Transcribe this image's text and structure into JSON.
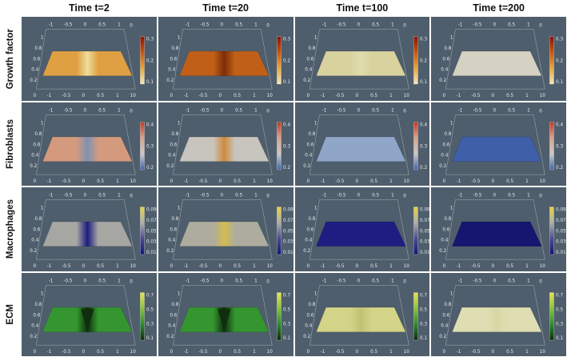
{
  "columns": [
    "Time t=2",
    "Time t=20",
    "Time t=100",
    "Time t=200"
  ],
  "panel_bg": "#4f5e6c",
  "axes": {
    "top_ticks": [
      "-1",
      "-0.5",
      "0",
      "0.5",
      "1"
    ],
    "top_right_corner": "0",
    "left_ticks": [
      "1",
      "0.8",
      "0.6",
      "0.4",
      "0.2"
    ],
    "bottom_left_corner": "0",
    "bottom_ticks": [
      "-1",
      "-0.5",
      "0",
      "0.5",
      "1"
    ],
    "bottom_right_corner": "10"
  },
  "rows": [
    {
      "label": "Growth factor",
      "colorbar": {
        "ticks": [
          "0.3",
          "0.2",
          "0.1"
        ],
        "colors": [
          "#8b1002",
          "#c85512",
          "#e8a83e",
          "#f4e8bc"
        ]
      },
      "cells": [
        {
          "main": "#dfa044",
          "center": "#eedd9a",
          "notch": false
        },
        {
          "main": "#c06018",
          "center": "#7e2d08",
          "notch": false
        },
        {
          "main": "#d8d29e",
          "center": "#e0dcae",
          "notch": false
        },
        {
          "main": "#d5d1c3",
          "center": "#d5d1c3",
          "notch": false
        }
      ]
    },
    {
      "label": "Fibroblasts",
      "colorbar": {
        "ticks": [
          "0.4",
          "0.3",
          "0.2"
        ],
        "colors": [
          "#c03a22",
          "#d8a28c",
          "#ccc8c6",
          "#4064ac"
        ]
      },
      "cells": [
        {
          "main": "#d49a7e",
          "center": "#7e92b2",
          "notch": false
        },
        {
          "main": "#c8c4be",
          "center": "#d08a3c",
          "notch": false
        },
        {
          "main": "#8fa6c9",
          "center": "#8fa6c9",
          "notch": false
        },
        {
          "main": "#3f5fa9",
          "center": "#3f5fa9",
          "notch": false
        }
      ]
    },
    {
      "label": "Macrophages",
      "colorbar": {
        "ticks": [
          "0.09",
          "0.07",
          "0.05",
          "0.03",
          "0.01"
        ],
        "colors": [
          "#e6d23f",
          "#b0b0a8",
          "#4a4a92",
          "#141478"
        ]
      },
      "cells": [
        {
          "main": "#a6a6a2",
          "center": "#1c1c80",
          "notch": false
        },
        {
          "main": "#aeac9e",
          "center": "#d2bc50",
          "notch": false
        },
        {
          "main": "#1e1e82",
          "center": "#1e1e82",
          "notch": false
        },
        {
          "main": "#161670",
          "center": "#161670",
          "notch": false
        }
      ]
    },
    {
      "label": "ECM",
      "colorbar": {
        "ticks": [
          "0.7",
          "0.5",
          "0.3",
          "0.1"
        ],
        "colors": [
          "#e8e44e",
          "#8cc23e",
          "#2e8b2e",
          "#0c2c0c"
        ]
      },
      "cells": [
        {
          "main": "#35962f",
          "center": "#0e2e0e",
          "notch": true
        },
        {
          "main": "#35962f",
          "center": "#0e2e0e",
          "notch": true
        },
        {
          "main": "#d4d488",
          "center": "#c2c275",
          "notch": false
        },
        {
          "main": "#dedeb2",
          "center": "#d8d8a6",
          "notch": false
        }
      ]
    }
  ],
  "chart_data": {
    "type": "surface",
    "layout": "4x4 grid of 3D surface plots; columns are time points, rows are model variables; each panel has axes x in [-1,1] (front/back), z in [0,1] (vertical, ticks 0.2-1) and its own colorbar",
    "times": [
      2,
      20,
      100,
      200
    ],
    "variables": [
      {
        "name": "Growth factor",
        "colorbar_range": [
          0.1,
          0.3
        ],
        "colorbar_ticks": [
          0.3,
          0.2,
          0.1
        ],
        "surfaces": [
          {
            "t": 2,
            "edge_value": 0.2,
            "center_value": 0.1,
            "shape": "central dip"
          },
          {
            "t": 20,
            "edge_value": 0.25,
            "center_value": 0.3,
            "shape": "central ridge"
          },
          {
            "t": 100,
            "edge_value": 0.12,
            "center_value": 0.12,
            "shape": "flat"
          },
          {
            "t": 200,
            "edge_value": 0.1,
            "center_value": 0.1,
            "shape": "flat"
          }
        ]
      },
      {
        "name": "Fibroblasts",
        "colorbar_range": [
          0.2,
          0.4
        ],
        "colorbar_ticks": [
          0.4,
          0.3,
          0.2
        ],
        "surfaces": [
          {
            "t": 2,
            "edge_value": 0.33,
            "center_value": 0.23,
            "shape": "central dip"
          },
          {
            "t": 20,
            "edge_value": 0.3,
            "center_value": 0.37,
            "shape": "central ridge"
          },
          {
            "t": 100,
            "edge_value": 0.26,
            "center_value": 0.26,
            "shape": "flat"
          },
          {
            "t": 200,
            "edge_value": 0.22,
            "center_value": 0.22,
            "shape": "flat"
          }
        ]
      },
      {
        "name": "Macrophages",
        "colorbar_range": [
          0.01,
          0.09
        ],
        "colorbar_ticks": [
          0.09,
          0.07,
          0.05,
          0.03,
          0.01
        ],
        "surfaces": [
          {
            "t": 2,
            "edge_value": 0.05,
            "center_value": 0.015,
            "shape": "central dip"
          },
          {
            "t": 20,
            "edge_value": 0.05,
            "center_value": 0.08,
            "shape": "central ridge"
          },
          {
            "t": 100,
            "edge_value": 0.015,
            "center_value": 0.015,
            "shape": "flat"
          },
          {
            "t": 200,
            "edge_value": 0.01,
            "center_value": 0.01,
            "shape": "flat"
          }
        ]
      },
      {
        "name": "ECM",
        "colorbar_range": [
          0.1,
          0.7
        ],
        "colorbar_ticks": [
          0.7,
          0.5,
          0.3,
          0.1
        ],
        "surfaces": [
          {
            "t": 2,
            "edge_value": 0.45,
            "center_value": 0.1,
            "shape": "deep central notch"
          },
          {
            "t": 20,
            "edge_value": 0.45,
            "center_value": 0.12,
            "shape": "deep central notch"
          },
          {
            "t": 100,
            "edge_value": 0.6,
            "center_value": 0.55,
            "shape": "slight dip"
          },
          {
            "t": 200,
            "edge_value": 0.65,
            "center_value": 0.65,
            "shape": "flat tilted"
          }
        ]
      }
    ]
  }
}
